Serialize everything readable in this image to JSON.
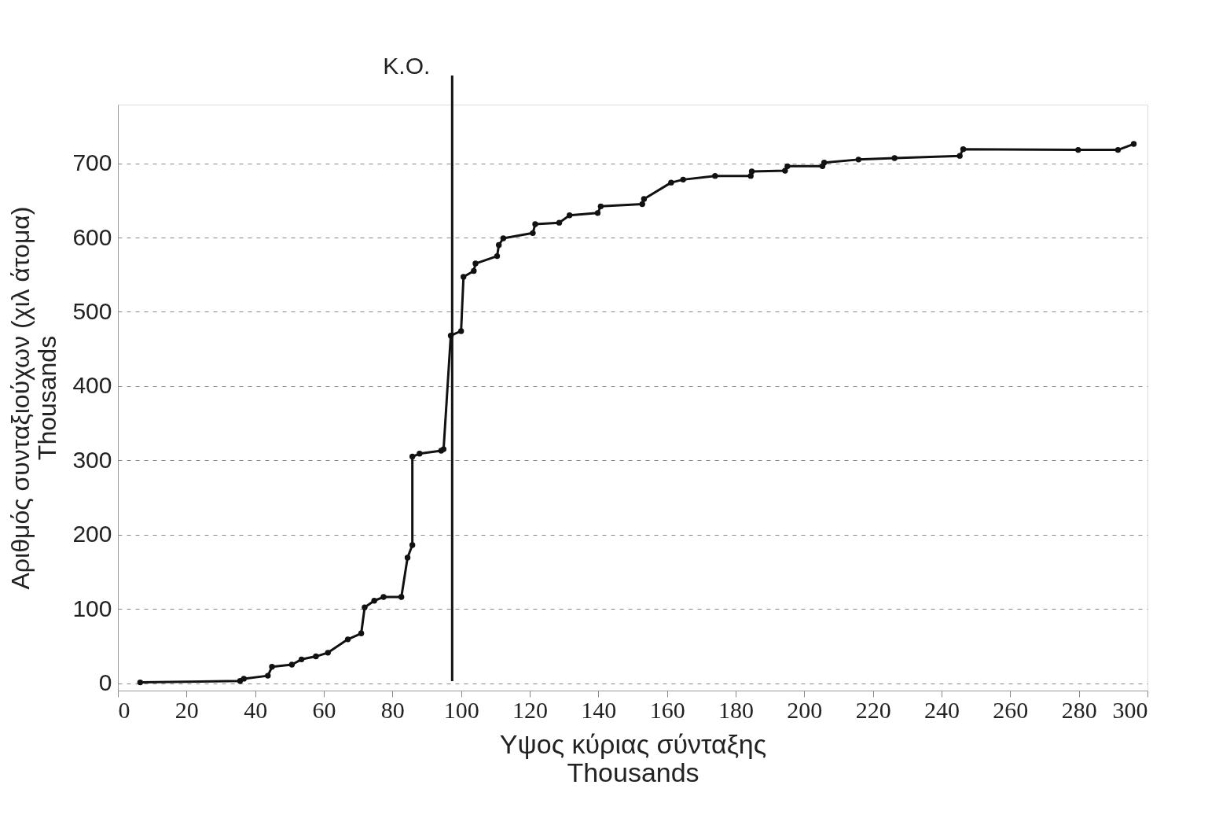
{
  "chart_data": {
    "type": "line",
    "xlabel": "Υψος κύριας σύνταξης\nThousands",
    "ylabel": "Αριθμός συνταξιούχων (χιλ άτομα)\nThousands",
    "series": [
      {
        "color": "#111111",
        "x": [
          6.5,
          35.6,
          36.7,
          43.7,
          44.9,
          50.7,
          53.5,
          57.7,
          61.2,
          67,
          70.9,
          71.9,
          74.7,
          77.4,
          82.6,
          84.4,
          85.8,
          85.8,
          87.9,
          94.2,
          94.9,
          97,
          100,
          100.7,
          103.7,
          104.2,
          110.5,
          111,
          112.3,
          120.9,
          121.6,
          128.6,
          131.6,
          139.8,
          140.7,
          152.8,
          153.3,
          161.2,
          164.7,
          174,
          184.4,
          184.7,
          194.4,
          195.1,
          205.3,
          205.8,
          215.8,
          226.3,
          245.3,
          246.3,
          279.8,
          291.4,
          296
        ],
        "values": [
          1,
          3,
          6,
          10,
          22,
          25,
          32,
          36,
          41,
          59,
          67,
          102,
          111,
          116,
          116,
          169,
          186,
          305,
          309,
          313,
          315,
          468,
          474,
          547,
          555,
          565,
          575,
          590,
          599,
          606,
          618,
          620,
          630,
          633,
          642,
          645,
          652,
          674,
          678,
          683,
          683,
          689,
          690,
          696,
          696,
          701,
          705,
          707,
          710,
          719,
          718,
          718,
          726
        ]
      }
    ],
    "xlim": [
      0,
      300
    ],
    "xticks": [
      0,
      20,
      40,
      60,
      80,
      100,
      120,
      140,
      160,
      180,
      200,
      220,
      240,
      260,
      280,
      300
    ],
    "ylim": [
      -10,
      779
    ],
    "yticks": [
      0,
      100,
      200,
      300,
      400,
      500,
      600,
      700
    ],
    "ref_lines": [
      {
        "axis": "x",
        "value": 97.4,
        "label": "K.O.",
        "color": "#111111"
      }
    ],
    "grid": "y",
    "marker": "circle",
    "line_style": "solid"
  }
}
